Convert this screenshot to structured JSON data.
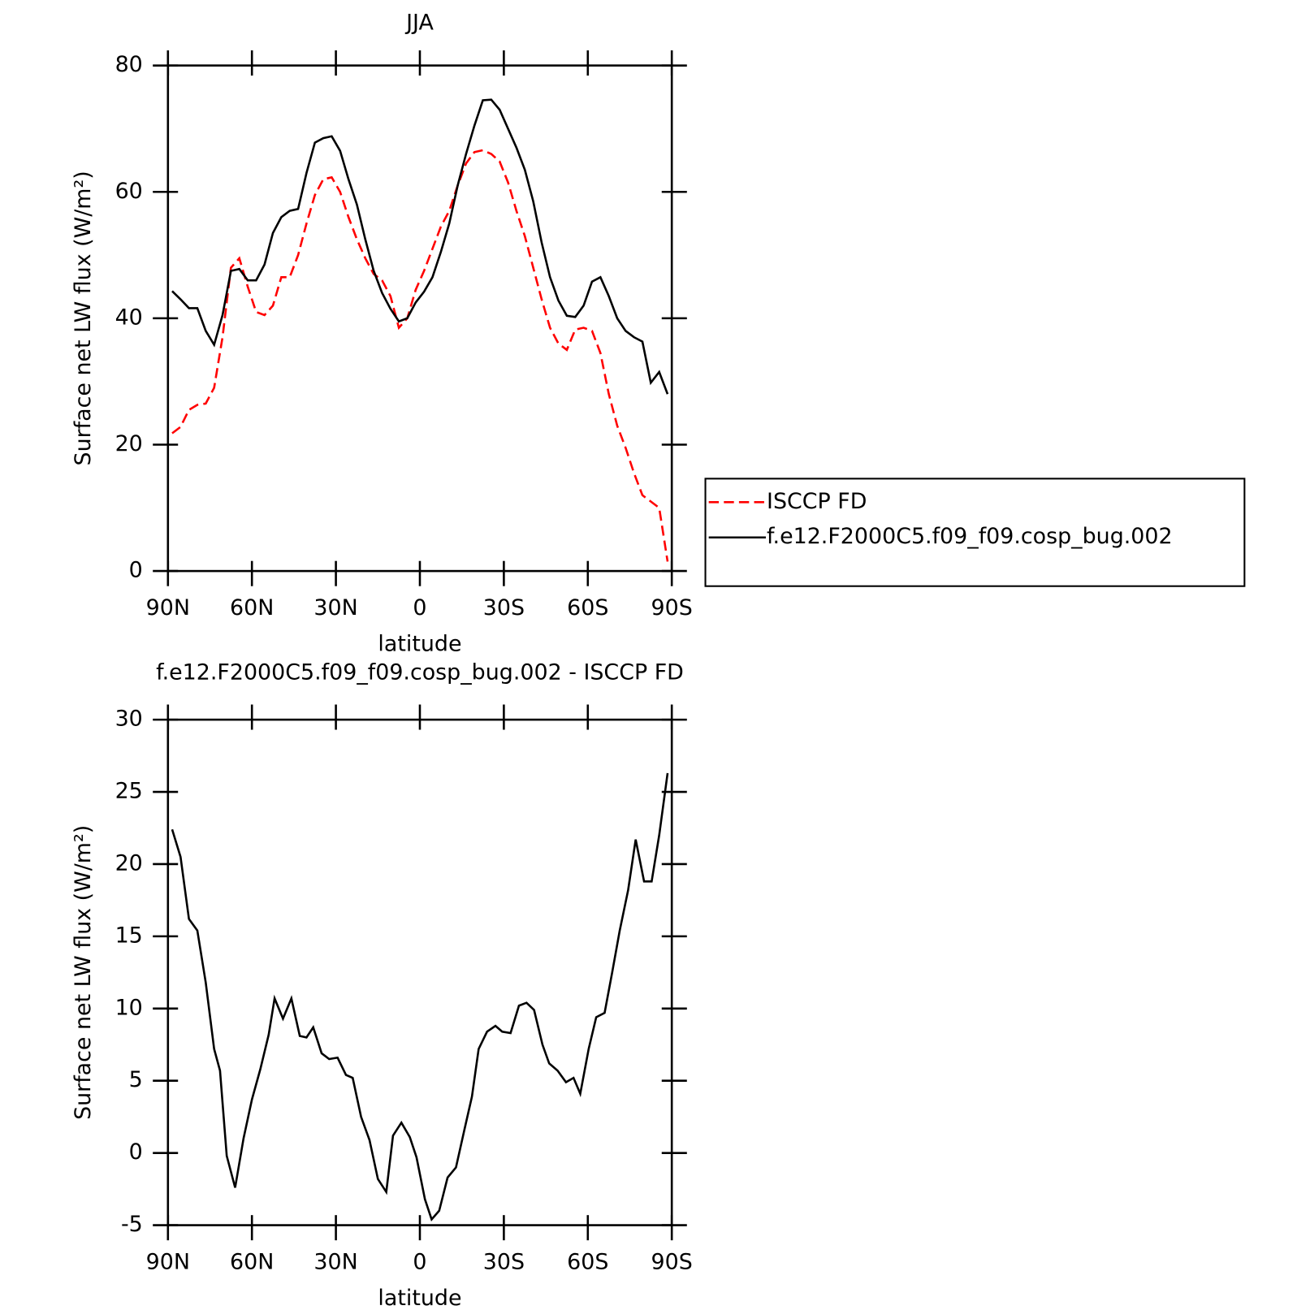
{
  "chart_data": [
    {
      "type": "line",
      "title": "JJA",
      "xlabel": "latitude",
      "ylabel": "Surface net LW flux (W/m²)",
      "x": [
        88.5,
        85.5,
        82.5,
        79.5,
        76.5,
        73.5,
        70.5,
        67.5,
        64.5,
        61.5,
        58.5,
        55.5,
        52.5,
        49.5,
        46.5,
        43.5,
        40.5,
        37.5,
        34.5,
        31.5,
        28.5,
        25.5,
        22.5,
        19.5,
        16.5,
        13.5,
        10.5,
        7.5,
        4.5,
        1.5,
        -1.5,
        -4.5,
        -7.5,
        -10.5,
        -13.5,
        -16.5,
        -19.5,
        -22.5,
        -25.5,
        -28.5,
        -31.5,
        -34.5,
        -37.5,
        -40.5,
        -43.5,
        -46.5,
        -49.5,
        -52.5,
        -55.5,
        -58.5,
        -61.5,
        -64.5,
        -67.5,
        -70.5,
        -73.5,
        -76.5,
        -79.5,
        -82.5,
        -85.5,
        -88.5
      ],
      "series": [
        {
          "name": "ISCCP FD",
          "color": "#ff0000",
          "linestyle": "dashed",
          "values": [
            21.8,
            22.8,
            25.5,
            26.3,
            26.5,
            29,
            37,
            48,
            49.5,
            45,
            41,
            40.5,
            42,
            46.5,
            46.5,
            50,
            55,
            59.5,
            62,
            62.3,
            60,
            56,
            52.5,
            49.5,
            47,
            46,
            43.5,
            38.5,
            40,
            44.5,
            47.5,
            51,
            54.5,
            57,
            61,
            64.5,
            66.3,
            66.6,
            66,
            64.8,
            61.5,
            57,
            53,
            48,
            43,
            38.5,
            36,
            35,
            38.2,
            38.5,
            38,
            34.5,
            28,
            23,
            19.5,
            15.5,
            12,
            11,
            10,
            1.5
          ]
        },
        {
          "name": "f.e12.F2000C5.f09_f09.cosp_bug.002",
          "color": "#000000",
          "linestyle": "solid",
          "values": [
            44.3,
            43,
            41.6,
            41.6,
            38,
            35.8,
            40.5,
            47.5,
            47.8,
            46,
            46,
            48.5,
            53.5,
            56,
            57,
            57.3,
            63,
            67.8,
            68.5,
            68.8,
            66.5,
            62,
            58,
            52.5,
            47.5,
            44,
            41.5,
            39.5,
            40,
            42.5,
            44.2,
            46.5,
            50.5,
            55,
            61,
            66,
            70.5,
            74.5,
            74.6,
            73,
            70,
            67,
            63.5,
            58.5,
            52,
            46.5,
            42.8,
            40.4,
            40.2,
            42,
            45.8,
            46.5,
            43.5,
            40,
            38,
            37,
            36.3,
            29.8,
            31.5,
            28
          ]
        }
      ],
      "xlim": [
        90,
        -90
      ],
      "xticks": [
        {
          "value": 90,
          "label": "90N"
        },
        {
          "value": 60,
          "label": "60N"
        },
        {
          "value": 30,
          "label": "30N"
        },
        0,
        {
          "value": -30,
          "label": "30S"
        },
        {
          "value": -60,
          "label": "60S"
        },
        {
          "value": -90,
          "label": "90S"
        }
      ],
      "ylim": [
        0,
        80
      ],
      "yticks": [
        0,
        20,
        40,
        60,
        80
      ],
      "legend": "right"
    },
    {
      "type": "line",
      "title": "f.e12.F2000C5.f09_f09.cosp_bug.002 - ISCCP FD",
      "xlabel": "latitude",
      "ylabel": "Surface net LW flux (W/m²)",
      "x": [
        88.5,
        85.5,
        82.5,
        79.5,
        76.5,
        73.5,
        71.4,
        69,
        66,
        63,
        60,
        57,
        54,
        51.9,
        48.9,
        45.9,
        42.9,
        40.5,
        38.1,
        35.1,
        32.4,
        29.4,
        26.4,
        24,
        21,
        18,
        15,
        12,
        9.6,
        6.6,
        3.6,
        1.2,
        -1.8,
        -4.2,
        -6.9,
        -9.9,
        -12.9,
        -15.9,
        -18.6,
        -21,
        -24,
        -27,
        -29.4,
        -32.4,
        -35.4,
        -38.1,
        -40.8,
        -43.8,
        -46.2,
        -49.2,
        -52.2,
        -54.9,
        -57.3,
        -60.3,
        -63,
        -66,
        -68.7,
        -71.4,
        -74.4,
        -77.1,
        -80.1,
        -82.8,
        -85.5,
        -88.5
      ],
      "values": [
        22.4,
        20.5,
        16.2,
        15.4,
        11.8,
        7.2,
        5.7,
        -0.2,
        -2.4,
        1,
        3.7,
        5.8,
        8.2,
        10.7,
        9.3,
        10.7,
        8.1,
        8,
        8.7,
        6.9,
        6.5,
        6.6,
        5.4,
        5.2,
        2.5,
        0.9,
        -1.8,
        -2.7,
        1.2,
        2.1,
        1.1,
        -0.3,
        -3.2,
        -4.6,
        -4,
        -1.7,
        -1,
        1.6,
        3.9,
        7.2,
        8.4,
        8.8,
        8.4,
        8.3,
        10.2,
        10.4,
        9.9,
        7.5,
        6.2,
        5.7,
        4.9,
        5.2,
        4.1,
        7.2,
        9.4,
        9.7,
        12.5,
        15.4,
        18.2,
        21.7,
        18.8,
        18.8,
        22,
        26.3
      ],
      "color": "#000000",
      "linestyle": "solid",
      "xlim": [
        90,
        -90
      ],
      "xticks": [
        {
          "value": 90,
          "label": "90N"
        },
        {
          "value": 60,
          "label": "60N"
        },
        {
          "value": 30,
          "label": "30N"
        },
        0,
        {
          "value": -30,
          "label": "30S"
        },
        {
          "value": -60,
          "label": "60S"
        },
        {
          "value": -90,
          "label": "90S"
        }
      ],
      "ylim": [
        -5,
        30
      ],
      "yticks": [
        -5,
        0,
        5,
        10,
        15,
        20,
        25,
        30
      ]
    }
  ]
}
